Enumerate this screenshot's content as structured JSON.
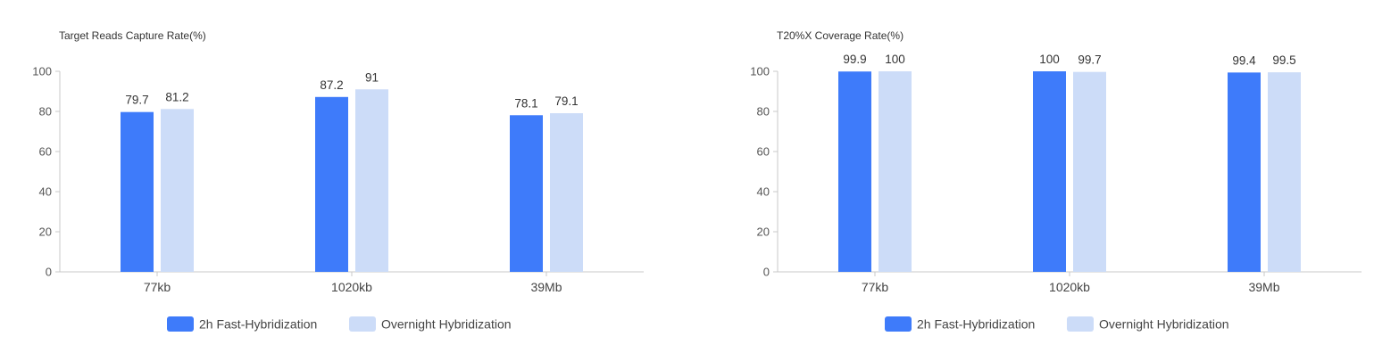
{
  "colors": {
    "series_1": "#3e7bfa",
    "series_2": "#ccdcf8",
    "axis": "#c8c8c8"
  },
  "chart_data": [
    {
      "type": "bar",
      "title": "Target Reads Capture Rate(%)",
      "categories": [
        "77kb",
        "1020kb",
        "39Mb"
      ],
      "series": [
        {
          "name": "2h Fast-Hybridization",
          "values": [
            79.7,
            87.2,
            78.1
          ]
        },
        {
          "name": "Overnight Hybridization",
          "values": [
            81.2,
            91,
            79.1
          ]
        }
      ],
      "yticks": [
        0,
        20,
        40,
        60,
        80,
        100
      ],
      "ylim": [
        0,
        100
      ],
      "grid": false,
      "legend": "bottom-center"
    },
    {
      "type": "bar",
      "title": "T20%X Coverage Rate(%)",
      "categories": [
        "77kb",
        "1020kb",
        "39Mb"
      ],
      "series": [
        {
          "name": "2h Fast-Hybridization",
          "values": [
            99.9,
            100,
            99.4
          ]
        },
        {
          "name": "Overnight Hybridization",
          "values": [
            100,
            99.7,
            99.5
          ]
        }
      ],
      "yticks": [
        0,
        20,
        40,
        60,
        80,
        100
      ],
      "ylim": [
        0,
        100
      ],
      "grid": false,
      "legend": "bottom-center"
    }
  ]
}
